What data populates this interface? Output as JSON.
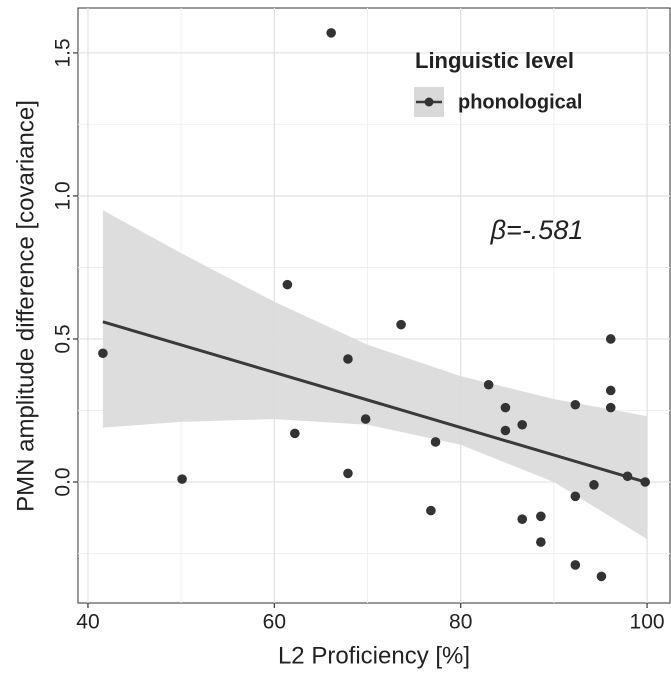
{
  "chart_data": {
    "type": "scatter",
    "x_label": "L2 Proficiency [%]",
    "y_label": "PMN amplitude difference [covariance]",
    "annotation": "β=-.581",
    "legend_title": "Linguistic level",
    "legend_position": "top-right",
    "grid": true,
    "xlim": [
      38.93,
      102.46
    ],
    "ylim": [
      -0.423,
      1.657
    ],
    "xticks": [
      40,
      60,
      80,
      100
    ],
    "yticks": [
      {
        "value": 0,
        "label": "0.0"
      },
      {
        "value": 0.5,
        "label": "0.5"
      },
      {
        "value": 1,
        "label": "1.0"
      },
      {
        "value": 1.5,
        "label": "1.5"
      }
    ],
    "series": [
      {
        "name": "phonological",
        "color": "#333333",
        "x": [
          41.6,
          50.1,
          61.4,
          62.2,
          66.1,
          67.9,
          67.9,
          69.8,
          73.6,
          76.8,
          77.3,
          83.0,
          84.8,
          84.8,
          86.6,
          86.6,
          88.6,
          88.6,
          92.3,
          92.3,
          92.3,
          94.3,
          95.1,
          96.1,
          96.1,
          96.1,
          97.9,
          99.8
        ],
        "values": [
          0.45,
          0.01,
          0.69,
          0.17,
          1.57,
          0.43,
          0.03,
          0.22,
          0.55,
          -0.1,
          0.14,
          0.34,
          0.26,
          0.18,
          0.2,
          -0.13,
          -0.12,
          -0.21,
          0.27,
          -0.05,
          -0.29,
          -0.01,
          -0.33,
          0.5,
          0.32,
          0.26,
          0.02,
          0.0
        ]
      }
    ],
    "fit": {
      "color": "#3a3a3a",
      "x": [
        41.6,
        99.8
      ],
      "values": [
        0.56,
        0.0
      ]
    },
    "band": {
      "color": "#d9d9d9",
      "x": [
        41.6,
        50,
        60,
        70,
        80,
        90,
        100
      ],
      "lower": [
        0.19,
        0.21,
        0.22,
        0.2,
        0.13,
        0.0,
        -0.2
      ],
      "upper": [
        0.95,
        0.8,
        0.63,
        0.48,
        0.37,
        0.29,
        0.23
      ]
    }
  }
}
